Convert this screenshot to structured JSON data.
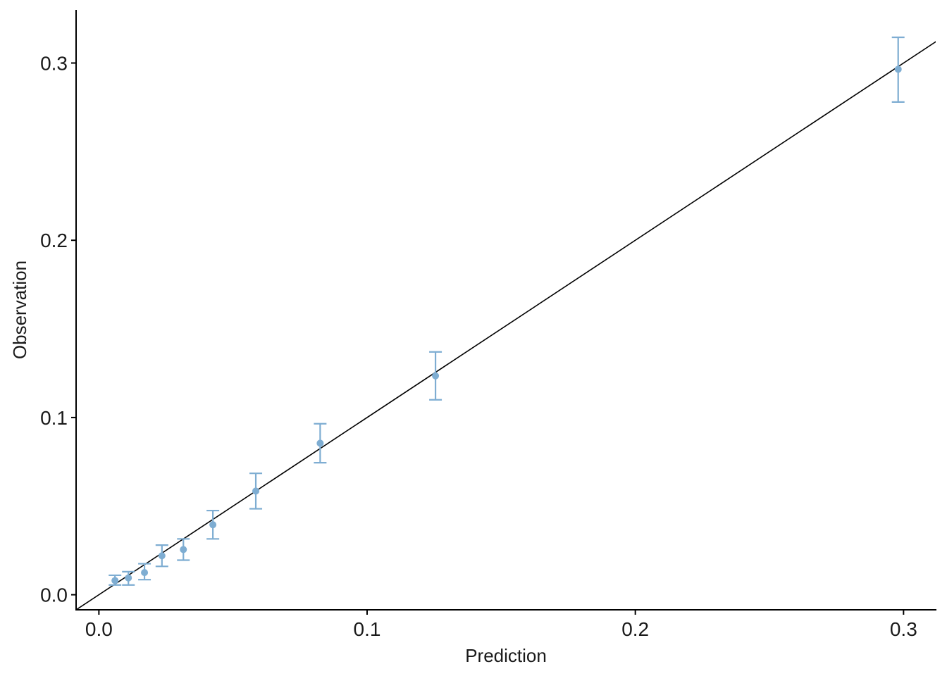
{
  "chart_data": {
    "type": "scatter",
    "title": "",
    "xlabel": "Prediction",
    "ylabel": "Observation",
    "xlim": [
      -0.0085,
      0.312
    ],
    "ylim": [
      -0.0085,
      0.33
    ],
    "x_ticks": [
      0.0,
      0.1,
      0.2,
      0.3
    ],
    "x_tick_labels": [
      "0.0",
      "0.1",
      "0.2",
      "0.3"
    ],
    "y_ticks": [
      0.0,
      0.1,
      0.2,
      0.3
    ],
    "y_tick_labels": [
      "0.0",
      "0.1",
      "0.2",
      "0.3"
    ],
    "grid": false,
    "reference_line": {
      "slope": 1,
      "intercept": 0,
      "color": "#000000"
    },
    "point_color": "#7eadd2",
    "series": [
      {
        "points": [
          {
            "x": 0.006,
            "y": 0.008,
            "lower": 0.0055,
            "upper": 0.011
          },
          {
            "x": 0.011,
            "y": 0.0095,
            "lower": 0.0055,
            "upper": 0.013
          },
          {
            "x": 0.017,
            "y": 0.0125,
            "lower": 0.0085,
            "upper": 0.0175
          },
          {
            "x": 0.0235,
            "y": 0.022,
            "lower": 0.016,
            "upper": 0.028
          },
          {
            "x": 0.0315,
            "y": 0.0255,
            "lower": 0.0195,
            "upper": 0.0315
          },
          {
            "x": 0.0425,
            "y": 0.0395,
            "lower": 0.0315,
            "upper": 0.0475
          },
          {
            "x": 0.0585,
            "y": 0.0585,
            "lower": 0.0485,
            "upper": 0.0685
          },
          {
            "x": 0.0825,
            "y": 0.0855,
            "lower": 0.0745,
            "upper": 0.0965
          },
          {
            "x": 0.1255,
            "y": 0.1235,
            "lower": 0.11,
            "upper": 0.137
          },
          {
            "x": 0.298,
            "y": 0.2965,
            "lower": 0.278,
            "upper": 0.3145
          }
        ]
      }
    ]
  }
}
